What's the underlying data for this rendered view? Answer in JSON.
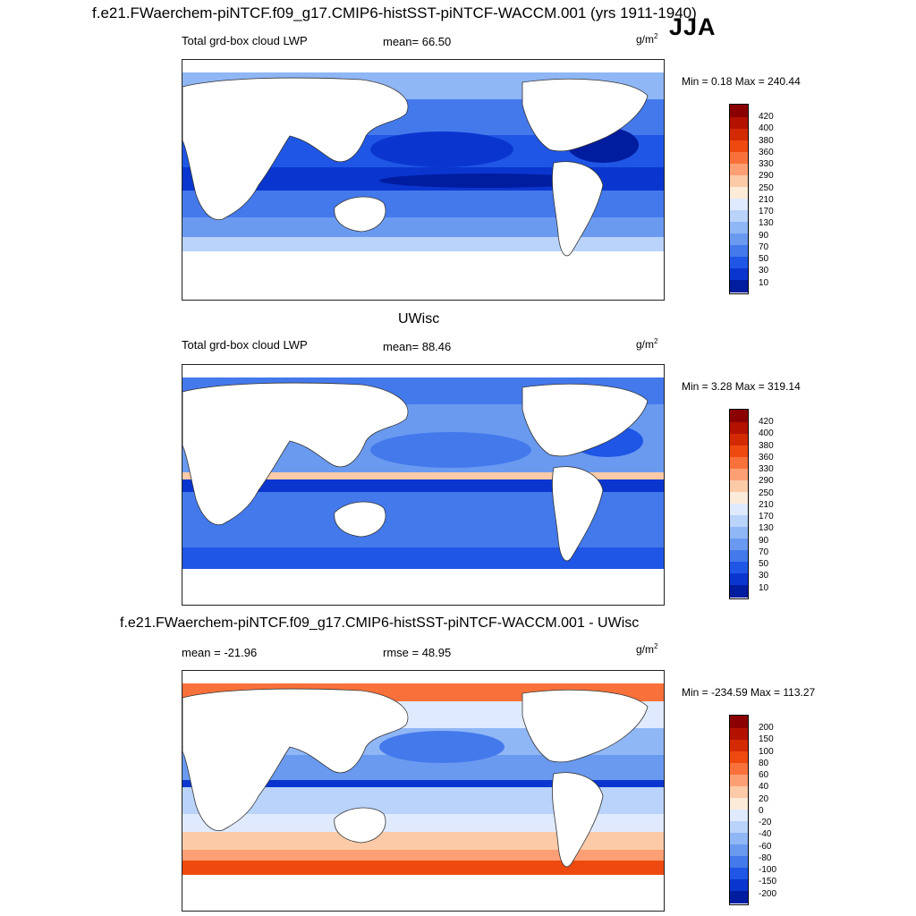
{
  "figure_title": "f.e21.FWaerchem-piNTCF.f09_g17.CMIP6-histSST-piNTCF-WACCM.001 (yrs 1911-1940)",
  "season": "JJA",
  "panels": [
    {
      "left_label": "Total grd-box cloud LWP",
      "stat_label": "mean=  66.50",
      "units": "g/m",
      "units_exp": "2",
      "minmax": "Min =   0.18 Max = 240.44",
      "colorbar_labels": [
        "420",
        "400",
        "380",
        "360",
        "330",
        "290",
        "250",
        "210",
        "170",
        "130",
        "90",
        "70",
        "50",
        "30",
        "10"
      ],
      "colorbar_colors": [
        "#8b0000",
        "#b31200",
        "#d42a02",
        "#ee4a10",
        "#f9713a",
        "#fc9f74",
        "#fdcaa8",
        "#fdebd9",
        "#dfeaff",
        "#b9d3fa",
        "#8fb6f5",
        "#6a9af0",
        "#4479ec",
        "#1f56e6",
        "#0a36cf",
        "#001c9f",
        "#000a72"
      ]
    },
    {
      "title": "UWisc",
      "left_label": "Total grd-box cloud LWP",
      "stat_label": "mean=  88.46",
      "units": "g/m",
      "units_exp": "2",
      "minmax": "Min =   3.28 Max = 319.14",
      "colorbar_labels": [
        "420",
        "400",
        "380",
        "360",
        "330",
        "290",
        "250",
        "210",
        "170",
        "130",
        "90",
        "70",
        "50",
        "30",
        "10"
      ],
      "colorbar_colors": [
        "#8b0000",
        "#b31200",
        "#d42a02",
        "#ee4a10",
        "#f9713a",
        "#fc9f74",
        "#fdcaa8",
        "#fdebd9",
        "#dfeaff",
        "#b9d3fa",
        "#8fb6f5",
        "#6a9af0",
        "#4479ec",
        "#1f56e6",
        "#0a36cf",
        "#001c9f",
        "#000a72"
      ]
    },
    {
      "title": "f.e21.FWaerchem-piNTCF.f09_g17.CMIP6-histSST-piNTCF-WACCM.001 - UWisc",
      "left_label": "mean = -21.96",
      "stat_label": "rmse =  48.95",
      "units": "g/m",
      "units_exp": "2",
      "minmax": "Min = -234.59 Max = 113.27",
      "colorbar_labels": [
        "200",
        "150",
        "100",
        "80",
        "60",
        "40",
        "20",
        "0",
        "-20",
        "-40",
        "-60",
        "-80",
        "-100",
        "-150",
        "-200"
      ],
      "colorbar_colors": [
        "#8b0000",
        "#b31200",
        "#d42a02",
        "#ee4a10",
        "#f9713a",
        "#fc9f74",
        "#fdcaa8",
        "#fdebd9",
        "#dfeaff",
        "#b9d3fa",
        "#8fb6f5",
        "#6a9af0",
        "#4479ec",
        "#1f56e6",
        "#0a36cf",
        "#001c9f",
        "#000a72"
      ]
    }
  ]
}
